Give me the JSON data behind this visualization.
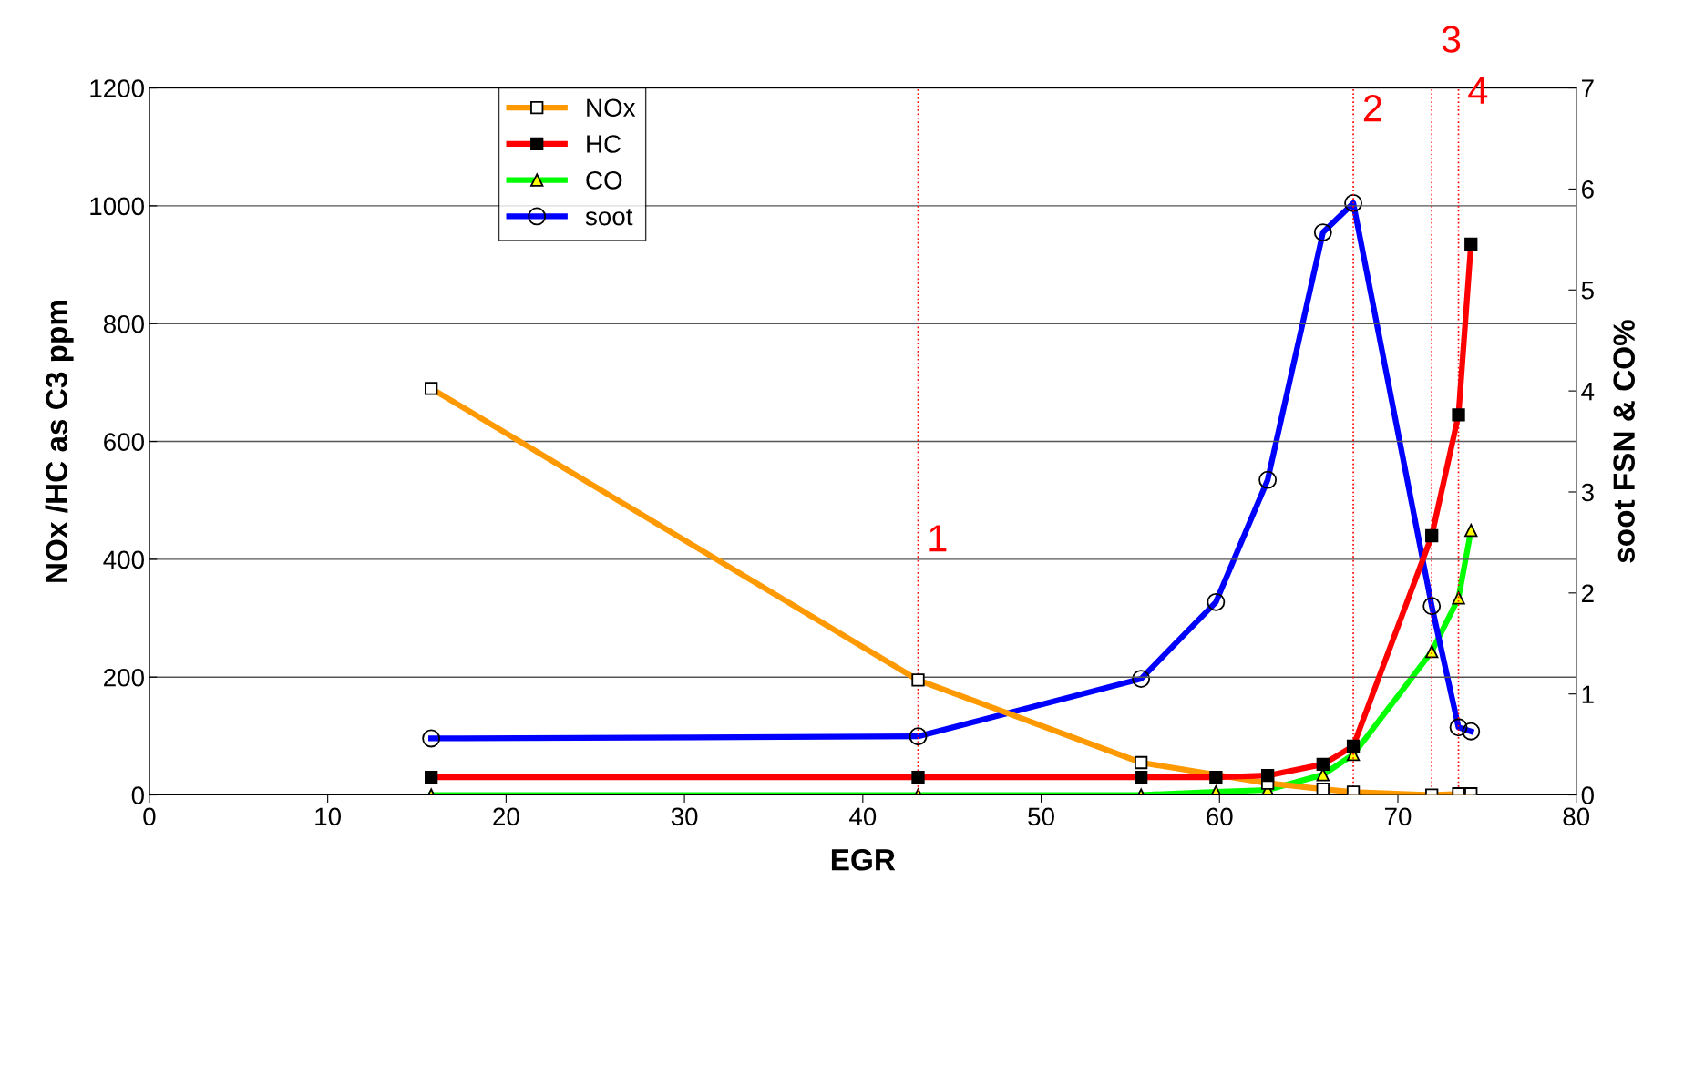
{
  "chart_data": {
    "type": "line",
    "xlabel": "EGR",
    "ylabel": "NOx /HC as C3 ppm",
    "y2label": "soot FSN & CO%",
    "x": [
      15.8,
      43.1,
      55.6,
      59.8,
      62.7,
      65.8,
      67.5,
      71.9,
      73.4,
      74.1
    ],
    "series": [
      {
        "name": "NOx",
        "color": "#ff9900",
        "marker": "square",
        "values": [
          690,
          195,
          55,
          null,
          20,
          10,
          5,
          0,
          2,
          2
        ]
      },
      {
        "name": "HC",
        "color": "#ff0000",
        "marker": "square",
        "values": [
          30,
          30,
          30,
          30,
          33,
          52,
          83,
          440,
          645,
          935
        ]
      },
      {
        "name": "CO",
        "color": "#00ff00",
        "marker": "triangle",
        "axis": "y2",
        "values": [
          0,
          0,
          0,
          0.03,
          0.05,
          0.2,
          0.4,
          1.42,
          1.95,
          2.62
        ]
      },
      {
        "name": "soot",
        "color": "#0000ff",
        "marker": "circle",
        "axis": "y2",
        "values": [
          0.56,
          0.58,
          1.15,
          1.91,
          3.12,
          5.57,
          5.86,
          1.87,
          0.67,
          0.63
        ]
      }
    ],
    "xlim": [
      0,
      80
    ],
    "xticks": [
      0,
      10,
      20,
      30,
      40,
      50,
      60,
      70,
      80
    ],
    "ylim": [
      0,
      1200
    ],
    "yticks": [
      0,
      200,
      400,
      600,
      800,
      1000,
      1200
    ],
    "y2lim": [
      0,
      7
    ],
    "y2ticks": [
      0,
      1,
      2,
      3,
      4,
      5,
      6,
      7
    ],
    "ref_lines": [
      {
        "axis": "x",
        "value": 43.1,
        "color": "#ff0000",
        "line_style": "dotted"
      },
      {
        "axis": "x",
        "value": 67.5,
        "color": "#ff0000",
        "line_style": "dotted"
      },
      {
        "axis": "x",
        "value": 71.9,
        "color": "#ff0000",
        "line_style": "dotted"
      },
      {
        "axis": "x",
        "value": 73.4,
        "color": "#ff0000",
        "line_style": "dotted"
      }
    ],
    "annotations": [
      {
        "text": "1",
        "x": 43.1,
        "y": 400
      },
      {
        "text": "2",
        "x": 67.5,
        "y": 1130
      },
      {
        "text": "3",
        "x": 71.9,
        "y": 1200
      },
      {
        "text": "4",
        "x": 73.4,
        "y": 1160
      }
    ],
    "grid": "y",
    "legend": "top left",
    "line_style": "solid"
  }
}
